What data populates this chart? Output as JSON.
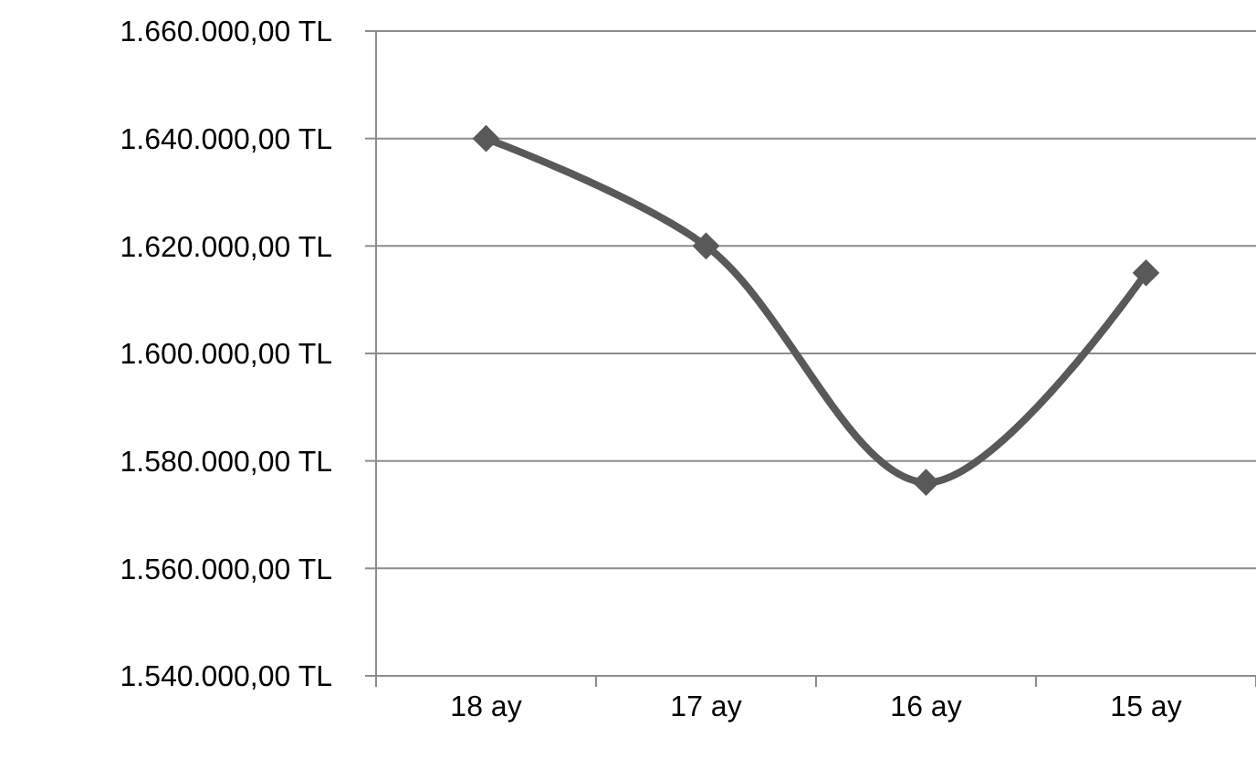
{
  "chart_data": {
    "type": "line",
    "categories": [
      "18 ay",
      "17 ay",
      "16 ay",
      "15 ay"
    ],
    "series": [
      {
        "color": "#595959",
        "values": [
          1640000,
          1620000,
          1576000,
          1615000
        ]
      }
    ],
    "ylim": [
      1540000,
      1660000
    ],
    "yticks": [
      {
        "value": 1540000,
        "label": "1.540.000,00 TL"
      },
      {
        "value": 1560000,
        "label": "1.560.000,00 TL"
      },
      {
        "value": 1580000,
        "label": "1.580.000,00 TL"
      },
      {
        "value": 1600000,
        "label": "1.600.000,00 TL"
      },
      {
        "value": 1620000,
        "label": "1.620.000,00 TL"
      },
      {
        "value": 1640000,
        "label": "1.640.000,00 TL"
      },
      {
        "value": 1660000,
        "label": "1.660.000,00 TL"
      }
    ],
    "grid": "y",
    "marker": "diamond",
    "line_style": "solid"
  }
}
